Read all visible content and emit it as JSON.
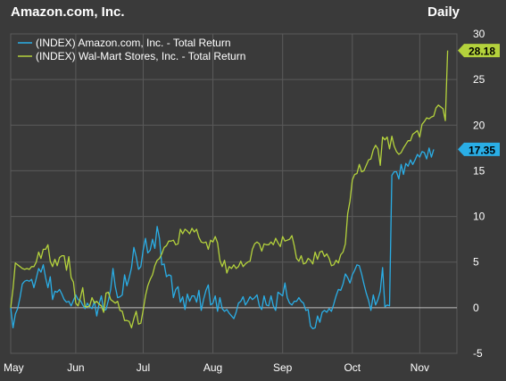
{
  "header": {
    "title": "Amazon.com, Inc.",
    "frequency": "Daily"
  },
  "colors": {
    "background": "#3a3a3a",
    "grid": "#5a5a5a",
    "amazon": "#2aaee6",
    "walmart": "#b4d23c",
    "zero_line": "#bfbfbf"
  },
  "chart_data": {
    "type": "line",
    "title": "Amazon.com, Inc.",
    "xlabel": "",
    "ylabel": "",
    "ylim": [
      -5,
      30
    ],
    "yticks": [
      -5,
      0,
      5,
      10,
      15,
      20,
      25,
      30
    ],
    "x_range": [
      0,
      192
    ],
    "month_ticks": [
      {
        "label": "May",
        "x": 0
      },
      {
        "label": "Jun",
        "x": 28
      },
      {
        "label": "Jul",
        "x": 57
      },
      {
        "label": "Aug",
        "x": 87
      },
      {
        "label": "Sep",
        "x": 117
      },
      {
        "label": "Oct",
        "x": 147
      },
      {
        "label": "Nov",
        "x": 176
      }
    ],
    "grid": true,
    "legend": "top-left",
    "series": [
      {
        "name": "(INDEX) Amazon.com, Inc. - Total Return",
        "last_value": "17.35",
        "values": [
          0,
          -2.2,
          -0.7,
          -0.1,
          1.1,
          2.6,
          2.9,
          3.0,
          2.9,
          3.1,
          2.2,
          3.2,
          4.3,
          3.9,
          4.7,
          3.3,
          2.2,
          3.4,
          0.9,
          1.8,
          1.7,
          2.0,
          1.5,
          0.9,
          0.6,
          0.7,
          0.2,
          0.8,
          1.4,
          0.9,
          0.8,
          0.3,
          -0.1,
          0.5,
          0.1,
          -0.1,
          0.7,
          -0.9,
          0.4,
          1.3,
          -0.3,
          -0.2,
          0.8,
          2.0,
          4.3,
          2.3,
          1.1,
          1.2,
          1.4,
          3.6,
          2.4,
          3.3,
          4.4,
          6.6,
          5.6,
          4.2,
          4.5,
          6.3,
          7.6,
          6.0,
          6.3,
          7.5,
          6.5,
          8.9,
          7.6,
          4.7,
          4.8,
          3.4,
          3.6,
          3.5,
          1.1,
          2.0,
          2.3,
          0.6,
          1.2,
          -0.2,
          1.5,
          0.7,
          1.3,
          1.3,
          0.6,
          1.9,
          -0.3,
          0.9,
          1.9,
          2.5,
          0.3,
          0.5,
          1.3,
          -0.4,
          1.1,
          -0.1,
          -0.4,
          -0.2,
          -0.6,
          -0.9,
          -1.2,
          -0.5,
          0.5,
          0.7,
          1.2,
          0.3,
          0.7,
          1.2,
          0.9,
          1.1,
          1.4,
          0.2,
          -0.2,
          1.3,
          0.3,
          0.2,
          1.3,
          0.2,
          -0.3,
          1.7,
          1.5,
          1.3,
          2.7,
          1.1,
          0.5,
          0.3,
          0.7,
          0.7,
          1.1,
          0.7,
          0.5,
          -0.3,
          -0.2,
          -2.0,
          -2.3,
          -2.2,
          -0.9,
          -1.6,
          -0.5,
          -0.3,
          -0.5,
          -0.1,
          -0.4,
          0.4,
          1.3,
          2.0,
          1.9,
          2.6,
          3.7,
          3.3,
          2.7,
          3.6,
          4.1,
          4.7,
          4.6,
          3.7,
          2.6,
          1.6,
          0.8,
          -0.3,
          1.4,
          0.3,
          0.9,
          1.8,
          4.4,
          0.1,
          0.3,
          0.2,
          14.5,
          14.9,
          14.9,
          14.1,
          15.7,
          14.6,
          15.8,
          15.5,
          16.2,
          15.7,
          16.2,
          16.8,
          16.5,
          17.1,
          17.0,
          16.3,
          17.5,
          16.5,
          17.35
        ]
      },
      {
        "name": "(INDEX) Wal-Mart Stores, Inc. - Total Return",
        "last_value": "28.18",
        "values": [
          0,
          2.1,
          4.9,
          4.7,
          4.5,
          4.3,
          4.2,
          4.3,
          4.2,
          4.5,
          4.5,
          5.0,
          6.1,
          5.4,
          6.4,
          6.4,
          6.9,
          5.1,
          4.5,
          5.3,
          4.6,
          5.5,
          5.7,
          5.7,
          4.1,
          5.6,
          3.3,
          2.8,
          0.5,
          0.2,
          1.1,
          2.2,
          0.1,
          0.1,
          0.2,
          1.1,
          0.5,
          0.7,
          0.4,
          0.2,
          -0.5,
          1.6,
          1.7,
          0.9,
          0.7,
          0.5,
          0.7,
          -0.3,
          -0.4,
          -1.4,
          -1.4,
          -1.5,
          -2.2,
          -1.2,
          -0.4,
          -1.8,
          -1.7,
          -0.3,
          1.3,
          2.4,
          3.1,
          3.6,
          4.6,
          5.2,
          5.4,
          5.9,
          6.6,
          6.8,
          7.3,
          7.3,
          7.4,
          6.9,
          7.0,
          8.6,
          8.1,
          8.6,
          8.4,
          8.1,
          8.7,
          8.3,
          8.6,
          7.7,
          7.2,
          7.1,
          7.2,
          6.4,
          7.4,
          7.2,
          7.8,
          7.1,
          5.2,
          4.5,
          5.2,
          3.8,
          4.5,
          4.3,
          4.7,
          4.3,
          4.5,
          5.1,
          4.5,
          4.8,
          5.0,
          5.1,
          6.4,
          7.0,
          7.2,
          7.0,
          6.2,
          7.0,
          6.9,
          6.9,
          7.2,
          6.9,
          7.6,
          7.1,
          6.7,
          7.8,
          7.3,
          7.4,
          7.5,
          7.9,
          6.8,
          5.4,
          5.1,
          5.7,
          4.8,
          4.9,
          5.4,
          5.2,
          4.8,
          6.1,
          5.3,
          6.1,
          6.2,
          5.6,
          5.9,
          5.4,
          4.6,
          4.7,
          5.2,
          4.9,
          5.8,
          6.1,
          7.0,
          10.3,
          11.7,
          14.0,
          14.6,
          14.7,
          15.7,
          14.9,
          15.0,
          15.6,
          16.2,
          16.3,
          17.3,
          17.8,
          17.4,
          15.6,
          18.7,
          18.4,
          18.7,
          17.4,
          18.8,
          17.7,
          17.1,
          16.8,
          17.0,
          17.5,
          17.9,
          18.3,
          18.3,
          19.0,
          19.2,
          19.4,
          18.7,
          20.1,
          20.4,
          20.8,
          20.7,
          20.9,
          21.0,
          21.9,
          22.2,
          22.0,
          21.8,
          20.5,
          28.18
        ]
      }
    ]
  }
}
